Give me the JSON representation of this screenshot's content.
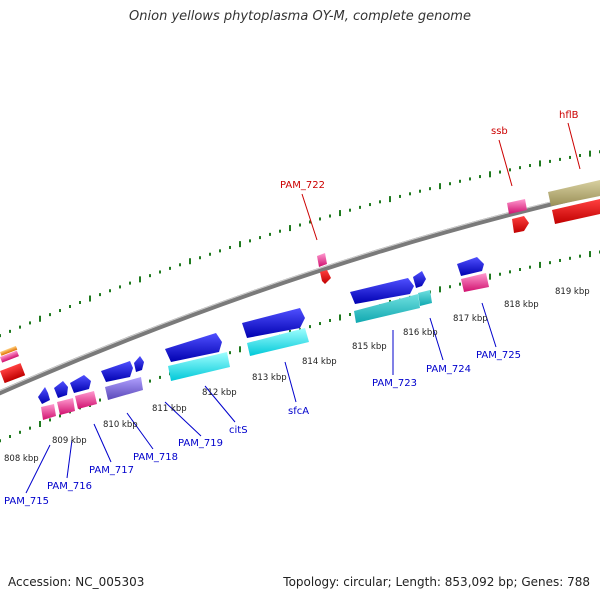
{
  "title": "Onion yellows phytoplasma OY-M, complete genome",
  "footer": {
    "accession": "Accession: NC_005303",
    "summary": "Topology: circular; Length: 853,092 bp; Genes: 788"
  },
  "colors": {
    "backbone": "#808080",
    "ticks": "#1f7a1f",
    "forward_label": "#cc0000",
    "reverse_label": "#0000cc"
  },
  "kbp_labels": [
    "808 kbp",
    "809 kbp",
    "810 kbp",
    "811 kbp",
    "812 kbp",
    "813 kbp",
    "814 kbp",
    "815 kbp",
    "816 kbp",
    "817 kbp",
    "818 kbp",
    "819 kbp"
  ],
  "forward_genes": [
    {
      "label": "PAM_722",
      "color": "#e0208a"
    },
    {
      "label": "ssb",
      "color": "#e0208a"
    },
    {
      "label": "hflB",
      "color": "#b5aa6a"
    }
  ],
  "reverse_genes": [
    {
      "label": "PAM_715",
      "color": "#e0208a"
    },
    {
      "label": "PAM_716",
      "color": "#e0208a"
    },
    {
      "label": "PAM_717",
      "color": "#e0208a"
    },
    {
      "label": "PAM_718",
      "color": "#7f6fd0"
    },
    {
      "label": "PAM_719",
      "color": "#00d8e0"
    },
    {
      "label": "citS",
      "color": "#00e0e0"
    },
    {
      "label": "sfcA",
      "color": "#00e0e0"
    },
    {
      "label": "PAM_723",
      "color": "#20c0c8"
    },
    {
      "label": "PAM_724",
      "color": "#20c0c8"
    },
    {
      "label": "PAM_725",
      "color": "#e0208a"
    }
  ]
}
